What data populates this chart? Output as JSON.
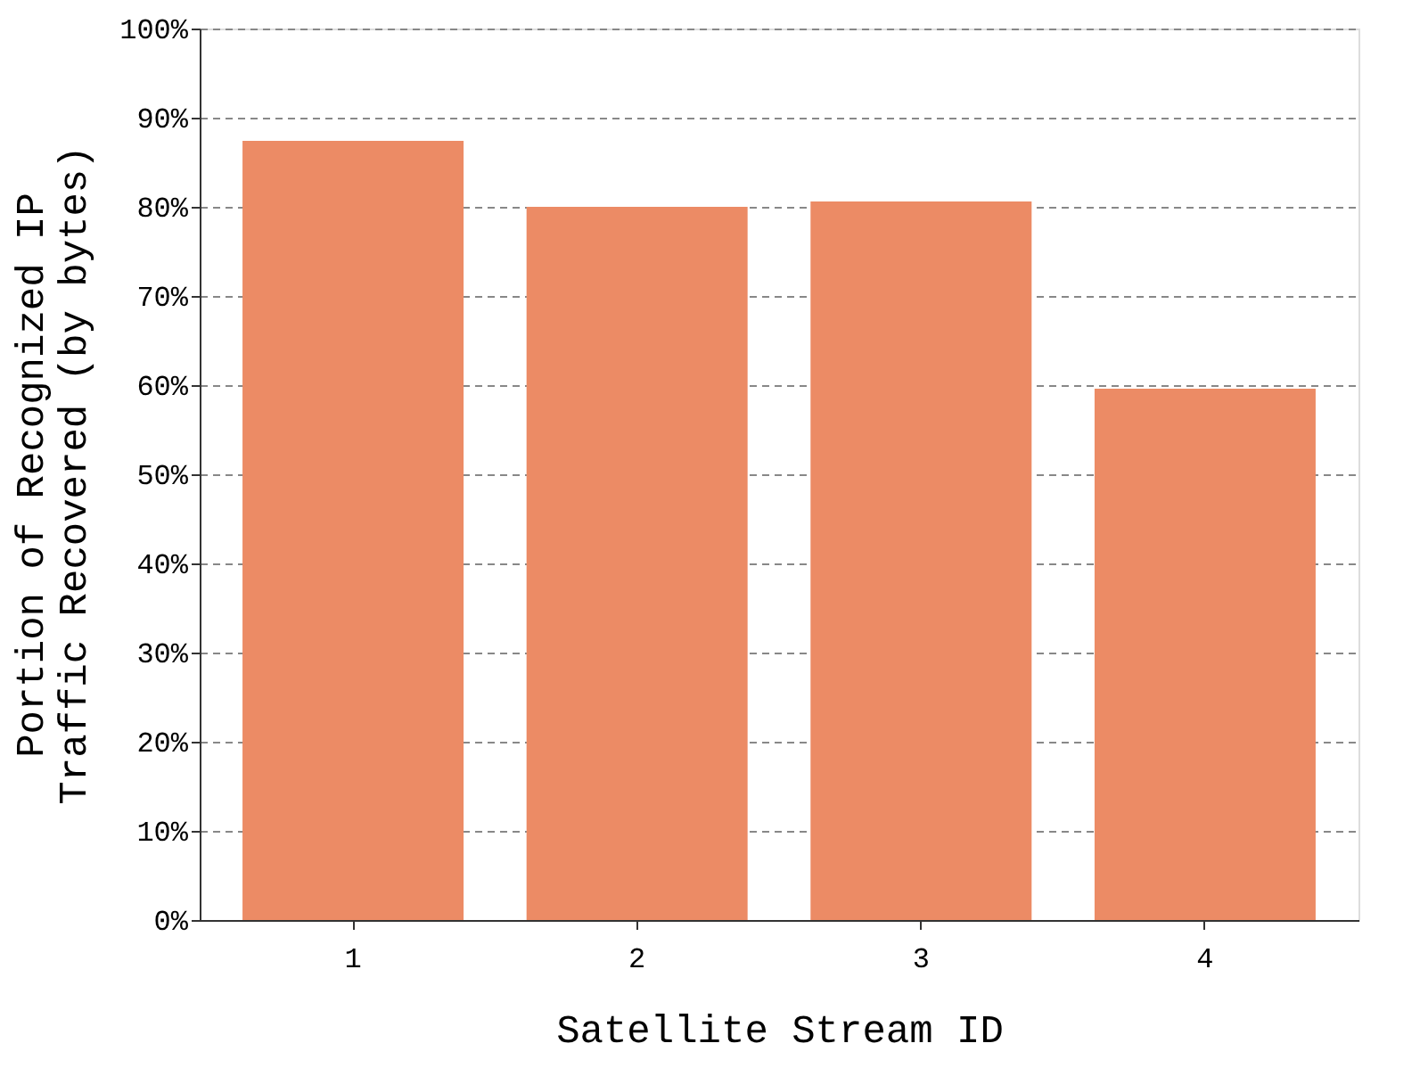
{
  "chart_data": {
    "type": "bar",
    "xlabel": "Satellite Stream ID",
    "ylabel": "Portion of Recognized IP\nTraffic Recovered (by bytes)",
    "categories": [
      "1",
      "2",
      "3",
      "4"
    ],
    "values": [
      87.4,
      80.0,
      80.6,
      59.6
    ],
    "color": "#ec8b65",
    "ylim": [
      0,
      100
    ],
    "yticks": [
      {
        "value": 0,
        "label": "0%"
      },
      {
        "value": 10,
        "label": "10%"
      },
      {
        "value": 20,
        "label": "20%"
      },
      {
        "value": 30,
        "label": "30%"
      },
      {
        "value": 40,
        "label": "40%"
      },
      {
        "value": 50,
        "label": "50%"
      },
      {
        "value": 60,
        "label": "60%"
      },
      {
        "value": 70,
        "label": "70%"
      },
      {
        "value": 80,
        "label": "80%"
      },
      {
        "value": 90,
        "label": "90%"
      },
      {
        "value": 100,
        "label": "100%"
      }
    ],
    "grid": "y"
  }
}
